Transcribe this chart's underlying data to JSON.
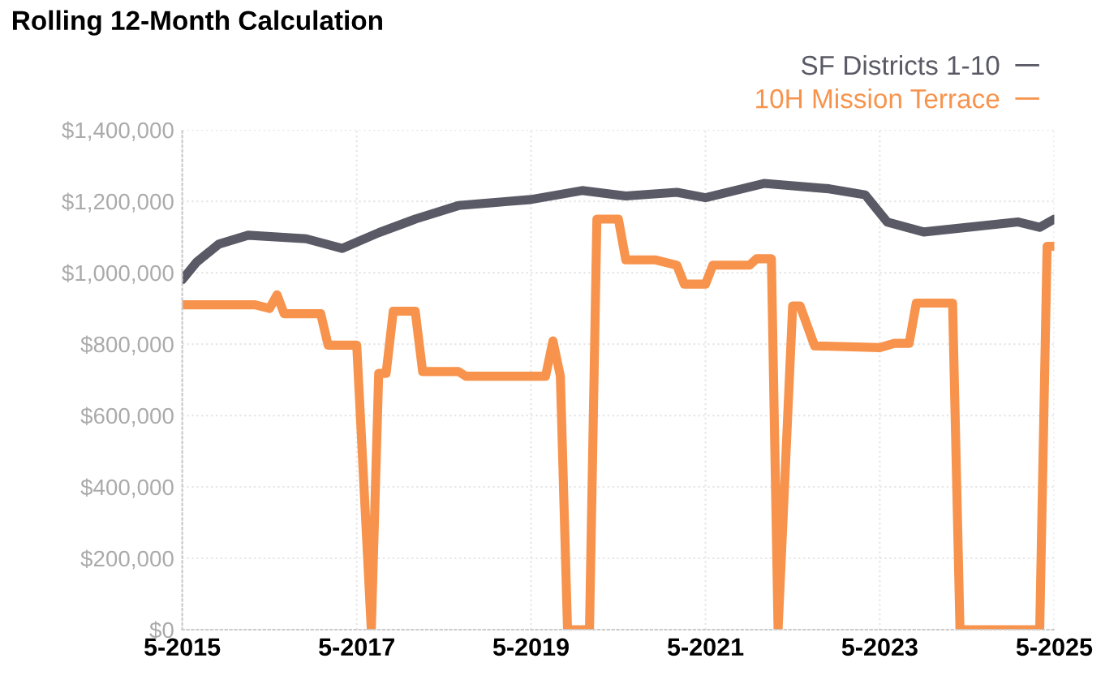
{
  "chart_data": {
    "type": "line",
    "title": "Rolling 12-Month Calculation",
    "xlim": [
      "2015-05",
      "2025-05"
    ],
    "xticks": [
      {
        "value": "2015-05",
        "label": "5-2015"
      },
      {
        "value": "2017-05",
        "label": "5-2017"
      },
      {
        "value": "2019-05",
        "label": "5-2019"
      },
      {
        "value": "2021-05",
        "label": "5-2021"
      },
      {
        "value": "2023-05",
        "label": "5-2023"
      },
      {
        "value": "2025-05",
        "label": "5-2025"
      }
    ],
    "ylim": [
      0,
      1400000
    ],
    "yticks": [
      {
        "value": 0,
        "label": "$0"
      },
      {
        "value": 200000,
        "label": "$200,000"
      },
      {
        "value": 400000,
        "label": "$400,000"
      },
      {
        "value": 600000,
        "label": "$600,000"
      },
      {
        "value": 800000,
        "label": "$800,000"
      },
      {
        "value": 1000000,
        "label": "$1,000,000"
      },
      {
        "value": 1200000,
        "label": "$1,200,000"
      },
      {
        "value": 1400000,
        "label": "$1,400,000"
      }
    ],
    "grid": true,
    "legend": "top right",
    "marker": "none",
    "line_style": "solid",
    "series": [
      {
        "name": "SF Districts 1-10",
        "color": "#5a5a66",
        "x": [
          "2015-05",
          "2015-07",
          "2015-10",
          "2016-02",
          "2016-10",
          "2017-03",
          "2017-08",
          "2018-01",
          "2018-07",
          "2019-02",
          "2019-05",
          "2019-12",
          "2020-06",
          "2021-01",
          "2021-05",
          "2022-01",
          "2022-10",
          "2023-03",
          "2023-06",
          "2023-11",
          "2024-12",
          "2025-03",
          "2025-05"
        ],
        "values": [
          980000,
          1030000,
          1080000,
          1105000,
          1095000,
          1068000,
          1112000,
          1150000,
          1188000,
          1200000,
          1205000,
          1230000,
          1215000,
          1225000,
          1210000,
          1250000,
          1235000,
          1218000,
          1142000,
          1114000,
          1142000,
          1127000,
          1150000
        ]
      },
      {
        "name": "10H Mission Terrace",
        "color": "#f7934c",
        "x": [
          "2015-05",
          "2016-03",
          "2016-05",
          "2016-06",
          "2016-07",
          "2016-12",
          "2017-01",
          "2017-05",
          "2017-07",
          "2017-08",
          "2017-09",
          "2017-10",
          "2018-01",
          "2018-02",
          "2018-07",
          "2018-08",
          "2019-07",
          "2019-08",
          "2019-09",
          "2019-10",
          "2020-01",
          "2020-02",
          "2020-05",
          "2020-06",
          "2020-10",
          "2021-01",
          "2021-02",
          "2021-05",
          "2021-06",
          "2021-11",
          "2021-12",
          "2022-02",
          "2022-03",
          "2022-05",
          "2022-06",
          "2022-08",
          "2023-05",
          "2023-07",
          "2023-09",
          "2023-10",
          "2024-03",
          "2024-04",
          "2025-03",
          "2025-04",
          "2025-05"
        ],
        "values": [
          910000,
          910000,
          900000,
          938000,
          885000,
          885000,
          797000,
          797000,
          0,
          718000,
          718000,
          892000,
          892000,
          723000,
          723000,
          710000,
          710000,
          809000,
          710000,
          0,
          0,
          1150000,
          1150000,
          1036000,
          1036000,
          1021000,
          968000,
          968000,
          1021000,
          1021000,
          1039000,
          1039000,
          0,
          907000,
          907000,
          795000,
          790000,
          802000,
          802000,
          915000,
          915000,
          0,
          0,
          1074000,
          1074000
        ]
      }
    ]
  }
}
